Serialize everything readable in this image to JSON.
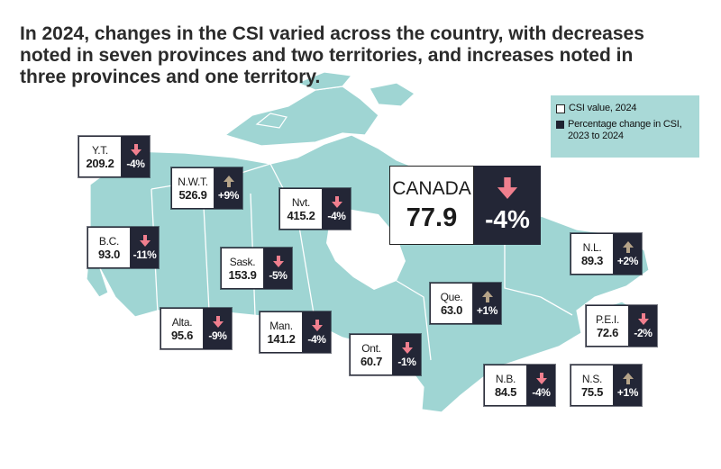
{
  "title_lines": [
    "In 2024, changes in the CSI varied across the country, with decreases",
    "noted in seven provinces and two territories, and increases noted in",
    "three provinces and one territory."
  ],
  "legend": {
    "value_label": "CSI value, 2024",
    "change_label_1": "Percentage change in CSI,",
    "change_label_2": "2023 to 2024"
  },
  "colors": {
    "map_land": "#9fd5d3",
    "legend_bg": "#a9d9d7",
    "box_dark": "#232636",
    "arrow_down": "#f07f8e",
    "arrow_up": "#b5a388"
  },
  "canada": {
    "name": "CANADA",
    "value": "77.9",
    "change": "-4%",
    "direction": "down"
  },
  "regions": {
    "yt": {
      "name": "Y.T.",
      "value": "209.2",
      "change": "-4%",
      "direction": "down"
    },
    "nwt": {
      "name": "N.W.T.",
      "value": "526.9",
      "change": "+9%",
      "direction": "up"
    },
    "nvt": {
      "name": "Nvt.",
      "value": "415.2",
      "change": "-4%",
      "direction": "down"
    },
    "bc": {
      "name": "B.C.",
      "value": "93.0",
      "change": "-11%",
      "direction": "down"
    },
    "sask": {
      "name": "Sask.",
      "value": "153.9",
      "change": "-5%",
      "direction": "down"
    },
    "alta": {
      "name": "Alta.",
      "value": "95.6",
      "change": "-9%",
      "direction": "down"
    },
    "man": {
      "name": "Man.",
      "value": "141.2",
      "change": "-4%",
      "direction": "down"
    },
    "ont": {
      "name": "Ont.",
      "value": "60.7",
      "change": "-1%",
      "direction": "down"
    },
    "que": {
      "name": "Que.",
      "value": "63.0",
      "change": "+1%",
      "direction": "up"
    },
    "nl": {
      "name": "N.L.",
      "value": "89.3",
      "change": "+2%",
      "direction": "up"
    },
    "pei": {
      "name": "P.E.I.",
      "value": "72.6",
      "change": "-2%",
      "direction": "down"
    },
    "nb": {
      "name": "N.B.",
      "value": "84.5",
      "change": "-4%",
      "direction": "down"
    },
    "ns": {
      "name": "N.S.",
      "value": "75.5",
      "change": "+1%",
      "direction": "up"
    }
  }
}
